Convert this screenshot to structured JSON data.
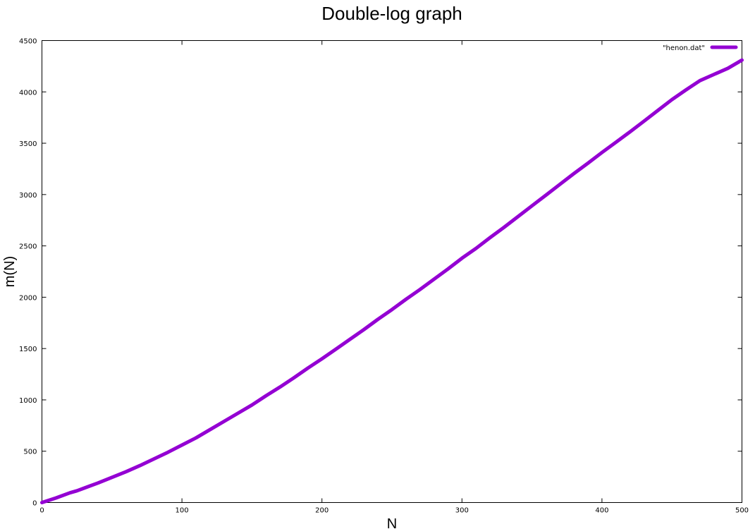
{
  "chart_data": {
    "type": "line",
    "title": "Double-log graph",
    "xlabel": "N",
    "ylabel": "m(N)",
    "xlim": [
      0,
      500
    ],
    "ylim": [
      0,
      4500
    ],
    "xticks": [
      0,
      100,
      200,
      300,
      400,
      500
    ],
    "yticks": [
      0,
      500,
      1000,
      1500,
      2000,
      2500,
      3000,
      3500,
      4000,
      4500
    ],
    "grid": false,
    "legend": "top-right",
    "series": [
      {
        "name": "\"henon.dat\"",
        "color": "#9400d3",
        "x": [
          0,
          10,
          20,
          25,
          30,
          40,
          50,
          60,
          70,
          80,
          90,
          100,
          110,
          120,
          130,
          140,
          150,
          160,
          170,
          180,
          190,
          200,
          210,
          220,
          230,
          240,
          250,
          260,
          270,
          280,
          290,
          300,
          310,
          320,
          330,
          340,
          350,
          360,
          370,
          380,
          390,
          400,
          410,
          420,
          430,
          440,
          450,
          460,
          470,
          480,
          490,
          500
        ],
        "y": [
          0,
          45,
          95,
          115,
          140,
          190,
          245,
          300,
          360,
          425,
          490,
          560,
          630,
          710,
          790,
          870,
          950,
          1040,
          1125,
          1215,
          1310,
          1400,
          1495,
          1590,
          1685,
          1785,
          1880,
          1980,
          2075,
          2175,
          2275,
          2380,
          2475,
          2580,
          2680,
          2785,
          2890,
          2995,
          3100,
          3205,
          3305,
          3410,
          3510,
          3610,
          3715,
          3820,
          3925,
          4020,
          4110,
          4170,
          4230,
          4310
        ]
      }
    ]
  }
}
